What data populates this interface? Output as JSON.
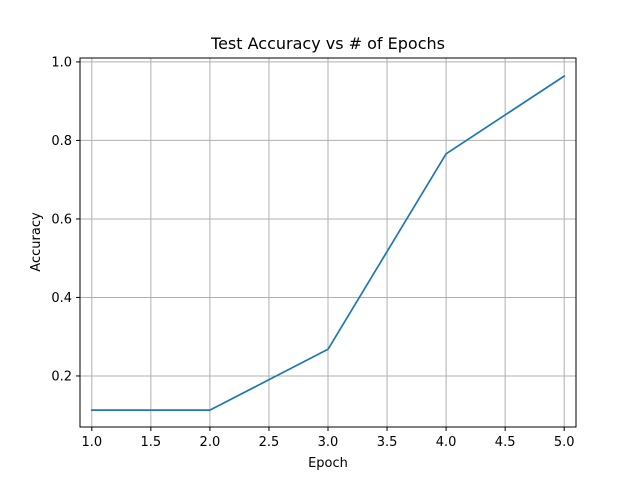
{
  "chart_data": {
    "type": "line",
    "title": "Test Accuracy vs # of Epochs",
    "xlabel": "Epoch",
    "ylabel": "Accuracy",
    "xlim": [
      0.9,
      5.1
    ],
    "ylim": [
      0.07,
      1.01
    ],
    "grid": true,
    "x_ticks": [
      1.0,
      1.5,
      2.0,
      2.5,
      3.0,
      3.5,
      4.0,
      4.5,
      5.0
    ],
    "x_tick_labels": [
      "1.0",
      "1.5",
      "2.0",
      "2.5",
      "3.0",
      "3.5",
      "4.0",
      "4.5",
      "5.0"
    ],
    "y_ticks": [
      0.2,
      0.4,
      0.6,
      0.8,
      1.0
    ],
    "y_tick_labels": [
      "0.2",
      "0.4",
      "0.6",
      "0.8",
      "1.0"
    ],
    "series": [
      {
        "color": "#1f77b4",
        "x": [
          1,
          2,
          3,
          4,
          5
        ],
        "y": [
          0.113,
          0.113,
          0.268,
          0.766,
          0.964
        ]
      }
    ],
    "colors": {
      "grid": "#b0b0b0",
      "axes": "#000000",
      "background": "#ffffff"
    }
  }
}
